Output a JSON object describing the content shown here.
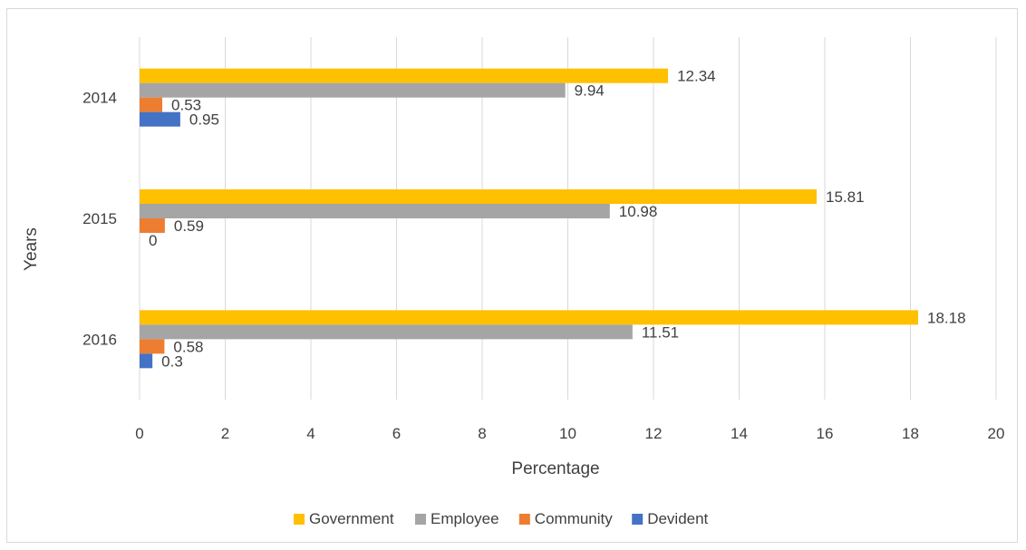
{
  "chart_data": {
    "type": "bar",
    "orientation": "horizontal",
    "title": "",
    "xlabel": "Percentage",
    "ylabel": "Years",
    "categories": [
      "2014",
      "2015",
      "2016"
    ],
    "xlim": [
      0,
      20
    ],
    "x_ticks": [
      "0",
      "2",
      "4",
      "6",
      "8",
      "10",
      "12",
      "14",
      "16",
      "18",
      "20"
    ],
    "grid": true,
    "legend_position": "bottom",
    "series": [
      {
        "name": "Government",
        "color": "#FFC000",
        "values": [
          12.34,
          15.81,
          18.18
        ],
        "labels": [
          "12.34",
          "15.81",
          "18.18"
        ]
      },
      {
        "name": "Employee",
        "color": "#A5A5A5",
        "values": [
          9.94,
          10.98,
          11.51
        ],
        "labels": [
          "9.94",
          "10.98",
          "11.51"
        ]
      },
      {
        "name": "Community",
        "color": "#ED7D31",
        "values": [
          0.53,
          0.59,
          0.58
        ],
        "labels": [
          "0.53",
          "0.59",
          "0.58"
        ]
      },
      {
        "name": "Devident",
        "color": "#4472C4",
        "values": [
          0.95,
          0,
          0.3
        ],
        "labels": [
          "0.95",
          "0",
          "0.3"
        ]
      }
    ]
  }
}
